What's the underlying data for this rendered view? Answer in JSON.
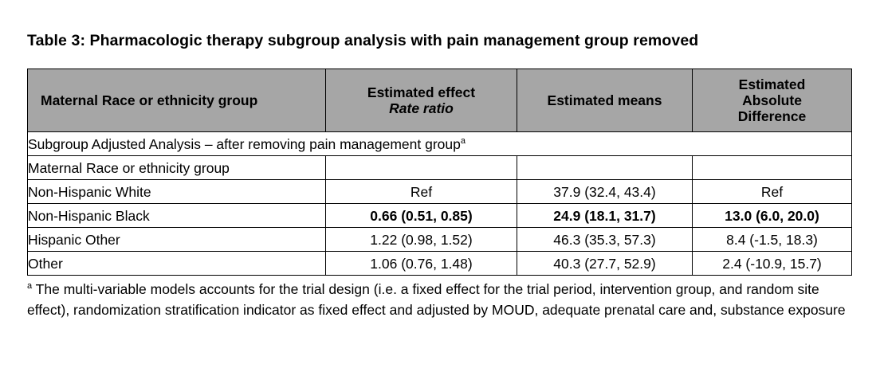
{
  "title": "Table 3: Pharmacologic therapy subgroup analysis with pain management group removed",
  "header": {
    "col1": "Maternal Race or ethnicity group",
    "col2_line1": "Estimated effect",
    "col2_line2": "Rate ratio",
    "col3": "Estimated means",
    "col4_line1": "Estimated",
    "col4_line2": "Absolute",
    "col4_line3": "Difference"
  },
  "section_label": "Subgroup Adjusted Analysis – after removing pain management group",
  "section_marker": "a",
  "subgroup_label": "Maternal Race or ethnicity group",
  "rows": [
    {
      "group": "Non-Hispanic White",
      "rate_ratio": "Ref",
      "means": "37.9 (32.4, 43.4)",
      "abs_diff": "Ref",
      "bold": false
    },
    {
      "group": "Non-Hispanic Black",
      "rate_ratio": "0.66 (0.51, 0.85)",
      "means": "24.9 (18.1, 31.7)",
      "abs_diff": "13.0 (6.0, 20.0)",
      "bold": true
    },
    {
      "group": "Hispanic Other",
      "rate_ratio": "1.22 (0.98, 1.52)",
      "means": "46.3 (35.3, 57.3)",
      "abs_diff": "8.4 (-1.5, 18.3)",
      "bold": false
    },
    {
      "group": "Other",
      "rate_ratio": "1.06 (0.76, 1.48)",
      "means": "40.3 (27.7, 52.9)",
      "abs_diff": "2.4 (-10.9, 15.7)",
      "bold": false
    }
  ],
  "footnote": {
    "marker": "a",
    "text": " The multi-variable models accounts for the trial design (i.e. a fixed effect for the trial period, intervention group, and random site effect), randomization stratification indicator as fixed effect and adjusted by MOUD, adequate prenatal care and, substance exposure"
  },
  "colors": {
    "header_bg": "#a6a6a6",
    "border": "#000000"
  }
}
